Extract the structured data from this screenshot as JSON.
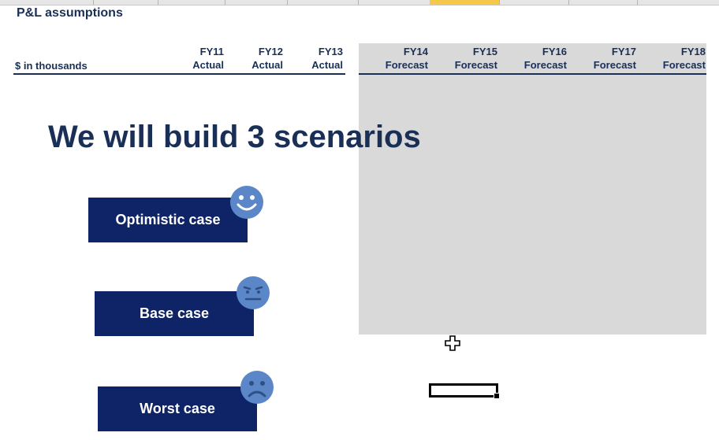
{
  "sheet": {
    "title": "P&L assumptions",
    "units_label": "$ in thousands",
    "years": [
      {
        "year": "FY11",
        "type": "Actual"
      },
      {
        "year": "FY12",
        "type": "Actual"
      },
      {
        "year": "FY13",
        "type": "Actual"
      },
      {
        "year": "FY14",
        "type": "Forecast"
      },
      {
        "year": "FY15",
        "type": "Forecast"
      },
      {
        "year": "FY16",
        "type": "Forecast"
      },
      {
        "year": "FY17",
        "type": "Forecast"
      },
      {
        "year": "FY18",
        "type": "Forecast"
      }
    ],
    "forecast_shade_color": "#d9d9d9"
  },
  "slide": {
    "headline": "We will build 3 scenarios",
    "scenarios": [
      {
        "label": "Optimistic case",
        "icon": "smiley-happy-icon"
      },
      {
        "label": "Base case",
        "icon": "smiley-neutral-icon"
      },
      {
        "label": "Worst case",
        "icon": "smiley-sad-icon"
      }
    ],
    "button_color": "#0f2467",
    "face_color": "#5b86c8"
  },
  "ui": {
    "cursor_icon": "cell-select-cursor-icon"
  }
}
